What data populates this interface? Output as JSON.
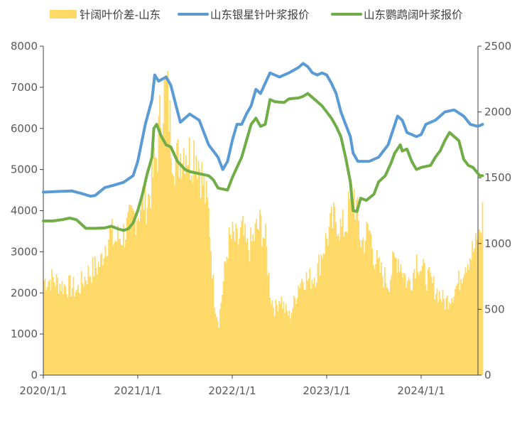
{
  "chart_data": {
    "type": "bar+line",
    "x_ticks": [
      "2020/1/1",
      "2021/1/1",
      "2022/1/1",
      "2023/1/1",
      "2024/1/1"
    ],
    "left_axis": {
      "ticks": [
        "0",
        "1000",
        "2000",
        "3000",
        "4000",
        "5000",
        "6000",
        "7000",
        "8000"
      ],
      "ylim": [
        0,
        8000
      ]
    },
    "right_axis": {
      "ticks": [
        "0",
        "500",
        "1000",
        "1500",
        "2000",
        "2500"
      ],
      "ylim": [
        0,
        2500
      ]
    },
    "legend": [
      {
        "name": "针阔叶价差-山东",
        "color": "#FFD966",
        "kind": "bar"
      },
      {
        "name": "山东银星针叶浆报价",
        "color": "#5B9BD5",
        "kind": "line"
      },
      {
        "name": "山东鹦鹉阔叶浆报价",
        "color": "#70AD47",
        "kind": "line"
      }
    ],
    "x_range": [
      2020.0,
      2024.7
    ],
    "series": [
      {
        "name": "山东银星针叶浆报价",
        "axis": "left",
        "color": "#5B9BD5",
        "points": [
          [
            2020.0,
            4450
          ],
          [
            2020.1,
            4460
          ],
          [
            2020.2,
            4470
          ],
          [
            2020.3,
            4480
          ],
          [
            2020.4,
            4420
          ],
          [
            2020.5,
            4350
          ],
          [
            2020.55,
            4370
          ],
          [
            2020.65,
            4560
          ],
          [
            2020.75,
            4620
          ],
          [
            2020.85,
            4690
          ],
          [
            2020.95,
            4850
          ],
          [
            2021.0,
            5200
          ],
          [
            2021.08,
            6100
          ],
          [
            2021.15,
            6700
          ],
          [
            2021.18,
            7300
          ],
          [
            2021.22,
            7150
          ],
          [
            2021.3,
            7250
          ],
          [
            2021.35,
            7050
          ],
          [
            2021.45,
            6150
          ],
          [
            2021.55,
            6350
          ],
          [
            2021.65,
            6200
          ],
          [
            2021.75,
            5600
          ],
          [
            2021.85,
            5300
          ],
          [
            2021.9,
            5000
          ],
          [
            2021.95,
            5200
          ],
          [
            2022.0,
            5700
          ],
          [
            2022.05,
            6100
          ],
          [
            2022.1,
            6100
          ],
          [
            2022.15,
            6350
          ],
          [
            2022.2,
            6550
          ],
          [
            2022.25,
            6950
          ],
          [
            2022.3,
            6850
          ],
          [
            2022.35,
            7100
          ],
          [
            2022.4,
            7350
          ],
          [
            2022.5,
            7250
          ],
          [
            2022.6,
            7350
          ],
          [
            2022.7,
            7480
          ],
          [
            2022.75,
            7580
          ],
          [
            2022.8,
            7500
          ],
          [
            2022.85,
            7350
          ],
          [
            2022.9,
            7300
          ],
          [
            2022.95,
            7350
          ],
          [
            2023.0,
            7300
          ],
          [
            2023.05,
            7100
          ],
          [
            2023.1,
            6850
          ],
          [
            2023.15,
            6400
          ],
          [
            2023.2,
            6100
          ],
          [
            2023.25,
            5800
          ],
          [
            2023.28,
            5400
          ],
          [
            2023.33,
            5200
          ],
          [
            2023.45,
            5200
          ],
          [
            2023.55,
            5300
          ],
          [
            2023.65,
            5600
          ],
          [
            2023.75,
            6300
          ],
          [
            2023.8,
            6200
          ],
          [
            2023.85,
            5900
          ],
          [
            2023.95,
            5800
          ],
          [
            2024.0,
            5850
          ],
          [
            2024.05,
            6100
          ],
          [
            2024.15,
            6200
          ],
          [
            2024.25,
            6400
          ],
          [
            2024.35,
            6450
          ],
          [
            2024.45,
            6300
          ],
          [
            2024.52,
            6100
          ],
          [
            2024.6,
            6050
          ],
          [
            2024.65,
            6100
          ]
        ]
      },
      {
        "name": "山东鹦鹉阔叶浆报价",
        "axis": "left",
        "color": "#70AD47",
        "points": [
          [
            2020.0,
            3750
          ],
          [
            2020.1,
            3750
          ],
          [
            2020.2,
            3780
          ],
          [
            2020.28,
            3820
          ],
          [
            2020.35,
            3780
          ],
          [
            2020.45,
            3570
          ],
          [
            2020.55,
            3570
          ],
          [
            2020.65,
            3580
          ],
          [
            2020.72,
            3620
          ],
          [
            2020.8,
            3550
          ],
          [
            2020.85,
            3520
          ],
          [
            2020.9,
            3560
          ],
          [
            2020.95,
            3700
          ],
          [
            2021.0,
            4000
          ],
          [
            2021.05,
            4400
          ],
          [
            2021.1,
            4900
          ],
          [
            2021.15,
            5300
          ],
          [
            2021.17,
            6000
          ],
          [
            2021.2,
            6100
          ],
          [
            2021.25,
            5800
          ],
          [
            2021.3,
            5600
          ],
          [
            2021.35,
            5550
          ],
          [
            2021.42,
            5200
          ],
          [
            2021.5,
            5000
          ],
          [
            2021.55,
            4950
          ],
          [
            2021.65,
            4900
          ],
          [
            2021.75,
            4850
          ],
          [
            2021.8,
            4750
          ],
          [
            2021.85,
            4550
          ],
          [
            2021.95,
            4500
          ],
          [
            2022.0,
            4800
          ],
          [
            2022.05,
            5050
          ],
          [
            2022.1,
            5300
          ],
          [
            2022.15,
            5700
          ],
          [
            2022.2,
            6100
          ],
          [
            2022.25,
            6250
          ],
          [
            2022.3,
            6050
          ],
          [
            2022.35,
            6100
          ],
          [
            2022.4,
            6700
          ],
          [
            2022.45,
            6650
          ],
          [
            2022.55,
            6630
          ],
          [
            2022.6,
            6720
          ],
          [
            2022.7,
            6740
          ],
          [
            2022.75,
            6780
          ],
          [
            2022.8,
            6850
          ],
          [
            2022.85,
            6750
          ],
          [
            2022.9,
            6650
          ],
          [
            2022.95,
            6550
          ],
          [
            2023.0,
            6400
          ],
          [
            2023.05,
            6250
          ],
          [
            2023.1,
            6050
          ],
          [
            2023.15,
            5800
          ],
          [
            2023.2,
            5300
          ],
          [
            2023.25,
            4700
          ],
          [
            2023.28,
            4000
          ],
          [
            2023.32,
            3980
          ],
          [
            2023.36,
            4300
          ],
          [
            2023.42,
            4250
          ],
          [
            2023.5,
            4400
          ],
          [
            2023.55,
            4700
          ],
          [
            2023.62,
            4850
          ],
          [
            2023.68,
            5150
          ],
          [
            2023.72,
            5400
          ],
          [
            2023.78,
            5600
          ],
          [
            2023.8,
            5450
          ],
          [
            2023.85,
            5500
          ],
          [
            2023.9,
            5200
          ],
          [
            2023.95,
            5000
          ],
          [
            2024.0,
            5050
          ],
          [
            2024.1,
            5100
          ],
          [
            2024.15,
            5300
          ],
          [
            2024.2,
            5450
          ],
          [
            2024.25,
            5700
          ],
          [
            2024.3,
            5900
          ],
          [
            2024.35,
            5800
          ],
          [
            2024.4,
            5700
          ],
          [
            2024.45,
            5250
          ],
          [
            2024.5,
            5100
          ],
          [
            2024.55,
            5050
          ],
          [
            2024.62,
            4850
          ],
          [
            2024.65,
            4850
          ]
        ]
      },
      {
        "name": "针阔叶价差-山东",
        "axis": "right",
        "color": "#FFD966",
        "points": [
          [
            2020.0,
            720
          ],
          [
            2020.1,
            730
          ],
          [
            2020.2,
            680
          ],
          [
            2020.3,
            670
          ],
          [
            2020.35,
            640
          ],
          [
            2020.45,
            760
          ],
          [
            2020.55,
            820
          ],
          [
            2020.6,
            850
          ],
          [
            2020.65,
            1000
          ],
          [
            2020.7,
            1080
          ],
          [
            2020.75,
            1020
          ],
          [
            2020.85,
            1080
          ],
          [
            2020.95,
            1200
          ],
          [
            2021.0,
            1250
          ],
          [
            2021.05,
            1350
          ],
          [
            2021.1,
            1320
          ],
          [
            2021.15,
            1500
          ],
          [
            2021.2,
            1700
          ],
          [
            2021.25,
            2100
          ],
          [
            2021.3,
            2180
          ],
          [
            2021.35,
            1800
          ],
          [
            2021.4,
            1600
          ],
          [
            2021.45,
            1700
          ],
          [
            2021.5,
            1750
          ],
          [
            2021.55,
            1650
          ],
          [
            2021.6,
            1750
          ],
          [
            2021.65,
            1600
          ],
          [
            2021.7,
            1400
          ],
          [
            2021.75,
            1200
          ],
          [
            2021.8,
            600
          ],
          [
            2021.85,
            400
          ],
          [
            2021.9,
            700
          ],
          [
            2021.95,
            1000
          ],
          [
            2022.0,
            1050
          ],
          [
            2022.05,
            1000
          ],
          [
            2022.1,
            1100
          ],
          [
            2022.15,
            950
          ],
          [
            2022.2,
            1000
          ],
          [
            2022.25,
            1100
          ],
          [
            2022.3,
            1150
          ],
          [
            2022.35,
            1000
          ],
          [
            2022.4,
            600
          ],
          [
            2022.45,
            500
          ],
          [
            2022.5,
            600
          ],
          [
            2022.55,
            500
          ],
          [
            2022.6,
            450
          ],
          [
            2022.65,
            550
          ],
          [
            2022.7,
            700
          ],
          [
            2022.75,
            750
          ],
          [
            2022.8,
            720
          ],
          [
            2022.85,
            750
          ],
          [
            2022.9,
            800
          ],
          [
            2022.95,
            950
          ],
          [
            2023.0,
            1050
          ],
          [
            2023.05,
            1150
          ],
          [
            2023.1,
            1200
          ],
          [
            2023.15,
            1100
          ],
          [
            2023.2,
            1150
          ],
          [
            2023.25,
            1350
          ],
          [
            2023.28,
            1400
          ],
          [
            2023.32,
            1200
          ],
          [
            2023.36,
            1000
          ],
          [
            2023.4,
            1050
          ],
          [
            2023.45,
            1100
          ],
          [
            2023.5,
            900
          ],
          [
            2023.55,
            800
          ],
          [
            2023.6,
            750
          ],
          [
            2023.65,
            700
          ],
          [
            2023.7,
            850
          ],
          [
            2023.75,
            900
          ],
          [
            2023.8,
            800
          ],
          [
            2023.85,
            700
          ],
          [
            2023.9,
            750
          ],
          [
            2023.95,
            900
          ],
          [
            2024.0,
            800
          ],
          [
            2024.05,
            750
          ],
          [
            2024.1,
            700
          ],
          [
            2024.15,
            650
          ],
          [
            2024.2,
            600
          ],
          [
            2024.25,
            550
          ],
          [
            2024.3,
            600
          ],
          [
            2024.35,
            650
          ],
          [
            2024.4,
            720
          ],
          [
            2024.45,
            850
          ],
          [
            2024.5,
            900
          ],
          [
            2024.55,
            950
          ],
          [
            2024.6,
            1000
          ],
          [
            2024.65,
            1250
          ]
        ]
      }
    ]
  }
}
